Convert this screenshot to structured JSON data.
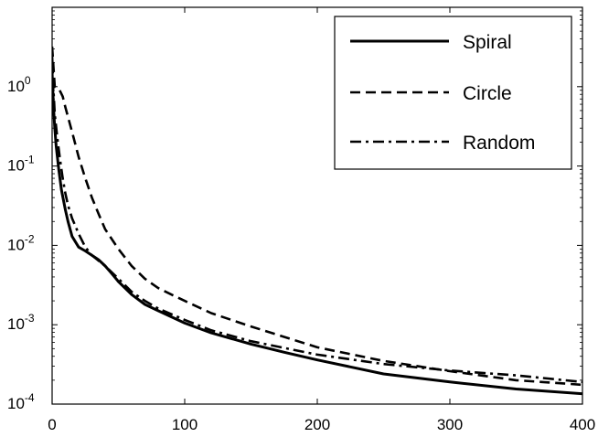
{
  "chart_data": {
    "type": "line",
    "title": "",
    "xlabel": "",
    "ylabel": "",
    "xlim": [
      0,
      400
    ],
    "ylim": [
      0.0001,
      10
    ],
    "yscale": "log",
    "grid": false,
    "legend_position": "top-right",
    "x_ticks": [
      0,
      100,
      200,
      300,
      400
    ],
    "x_tick_labels": [
      "0",
      "100",
      "200",
      "300",
      "400"
    ],
    "y_ticks": [
      {
        "value": 0.0001,
        "base": "10",
        "exp": "-4"
      },
      {
        "value": 0.001,
        "base": "10",
        "exp": "-3"
      },
      {
        "value": 0.01,
        "base": "10",
        "exp": "-2"
      },
      {
        "value": 0.1,
        "base": "10",
        "exp": "-1"
      },
      {
        "value": 1,
        "base": "10",
        "exp": "0"
      }
    ],
    "series": [
      {
        "name": "Spiral",
        "style": "solid",
        "color": "#000000",
        "x": [
          0,
          1,
          2,
          3,
          5,
          7,
          10,
          12,
          15,
          20,
          25,
          30,
          35,
          40,
          45,
          50,
          60,
          70,
          80,
          100,
          120,
          150,
          175,
          200,
          250,
          300,
          350,
          400
        ],
        "y": [
          1.5,
          0.55,
          0.3,
          0.18,
          0.09,
          0.05,
          0.028,
          0.02,
          0.013,
          0.0095,
          0.0085,
          0.0075,
          0.0066,
          0.0055,
          0.0044,
          0.0035,
          0.0024,
          0.0018,
          0.0015,
          0.00105,
          0.00079,
          0.00057,
          0.00045,
          0.00036,
          0.00024,
          0.00019,
          0.000155,
          0.000135
        ]
      },
      {
        "name": "Circle",
        "style": "dashed",
        "color": "#000000",
        "x": [
          0,
          2,
          5,
          8,
          10,
          15,
          20,
          25,
          30,
          35,
          40,
          50,
          60,
          70,
          80,
          90,
          100,
          120,
          150,
          200,
          250,
          300,
          350,
          400
        ],
        "y": [
          3.2,
          1.0,
          0.95,
          0.75,
          0.55,
          0.27,
          0.13,
          0.07,
          0.04,
          0.025,
          0.016,
          0.009,
          0.0055,
          0.0038,
          0.0029,
          0.0024,
          0.002,
          0.0014,
          0.00095,
          0.00052,
          0.00035,
          0.00026,
          0.0002,
          0.000175
        ]
      },
      {
        "name": "Random",
        "style": "dashdot",
        "color": "#000000",
        "x": [
          0,
          1,
          2,
          4,
          6,
          8,
          10,
          12,
          15,
          20,
          25,
          30,
          40,
          50,
          60,
          70,
          80,
          100,
          120,
          150,
          200,
          250,
          300,
          350,
          400
        ],
        "y": [
          2.5,
          0.9,
          0.45,
          0.22,
          0.12,
          0.07,
          0.045,
          0.032,
          0.022,
          0.014,
          0.0095,
          0.0075,
          0.0055,
          0.0038,
          0.0026,
          0.002,
          0.0016,
          0.00115,
          0.00085,
          0.00062,
          0.00042,
          0.00032,
          0.000265,
          0.00023,
          0.00019
        ]
      }
    ]
  }
}
